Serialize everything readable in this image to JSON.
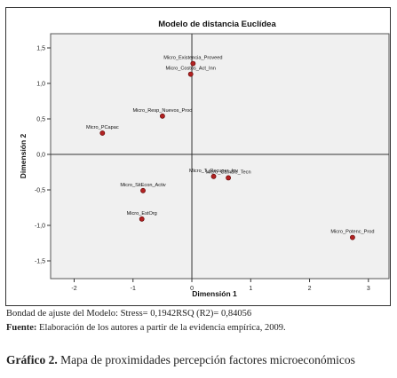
{
  "chart_data": {
    "type": "scatter",
    "title": "Modelo de distancia Euclídea",
    "xlabel": "Dimensión 1",
    "ylabel": "Dimensión 2",
    "xlim": [
      -2.4,
      3.35
    ],
    "ylim": [
      -1.75,
      1.7
    ],
    "xticks": [
      -2,
      -1,
      0,
      1,
      2,
      3
    ],
    "yticks": [
      -1.5,
      -1.0,
      -0.5,
      0.0,
      0.5,
      1.0,
      1.5
    ],
    "xtick_labels": [
      "-2",
      "-1",
      "0",
      "1",
      "2",
      "3"
    ],
    "ytick_labels": [
      "-1,5",
      "-1,0",
      "-0,5",
      "0,0",
      "0,5",
      "1,0",
      "1,5"
    ],
    "zero_lines": true,
    "grid": false,
    "plot_background": "#f0f0f0",
    "point_color": "#b22222",
    "points": [
      {
        "label": "Micro_Existencia_Proveed",
        "x": 0.02,
        "y": 1.28
      },
      {
        "label": "Micro_Costos_Act_Inn",
        "x": -0.02,
        "y": 1.13
      },
      {
        "label": "Micro_Resp_Nuevos_Prod",
        "x": -0.5,
        "y": 0.54
      },
      {
        "label": "Micro_PCapac",
        "x": -1.52,
        "y": 0.3
      },
      {
        "label": "Micro_T_Recuper_Inv",
        "x": 0.37,
        "y": -0.31
      },
      {
        "label": "Micro_Cambio_Tecn",
        "x": 0.62,
        "y": -0.33
      },
      {
        "label": "Micro_SitEcon_Activ",
        "x": -0.83,
        "y": -0.51
      },
      {
        "label": "Micro_EstOrg",
        "x": -0.85,
        "y": -0.91
      },
      {
        "label": "Micro_Potenc_Prod",
        "x": 2.73,
        "y": -1.17
      }
    ]
  },
  "captions": {
    "fit": "Bondad de ajuste del Modelo: Stress= 0,1942RSQ (R2)= 0,84056",
    "source_label": "Fuente:",
    "source_text": " Elaboración de los autores a partir de la evidencia empírica, 2009.",
    "figure_label": "Gráfico 2.",
    "figure_text": " Mapa de proximidades percepción factores microeconómicos"
  }
}
